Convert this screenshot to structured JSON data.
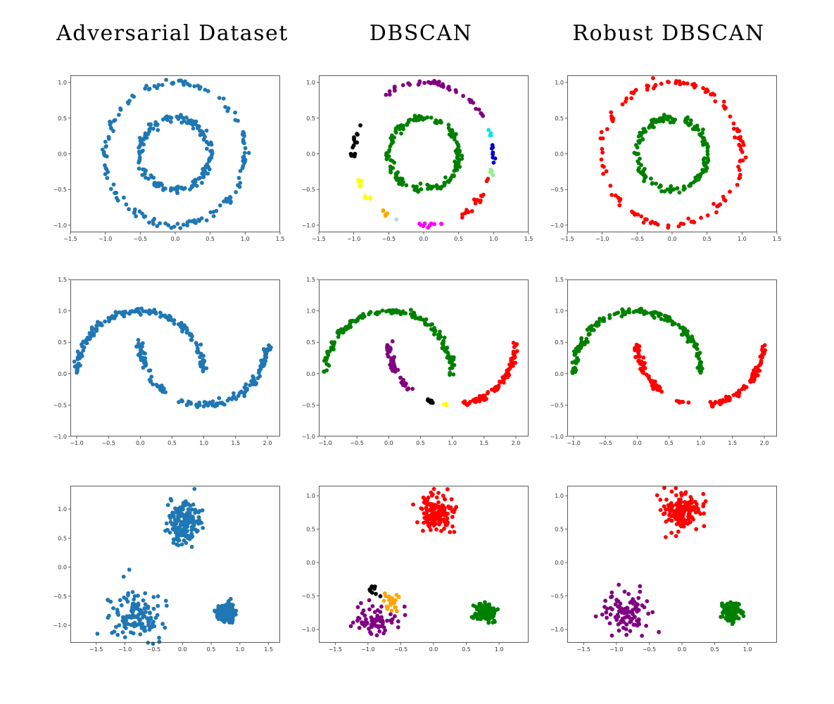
{
  "titles": [
    "Adversarial Dataset",
    "DBSCAN",
    "Robust DBSCAN"
  ],
  "colors": {
    "blue": "#1f77b4",
    "green": "#008000",
    "purple": "#800080",
    "black": "#000000",
    "red": "#ff0000",
    "cyan": "#00e5ee",
    "navy": "#0000cd",
    "lightgreen": "#90ee90",
    "magenta": "#ff00ff",
    "lightblue": "#add8e6",
    "orange": "#ffa500",
    "yellow": "#ffff00"
  },
  "chart_data": [
    {
      "type": "scatter",
      "title": "Adversarial Dataset",
      "xlim": [
        -1.5,
        1.5
      ],
      "ylim": [
        -1.1,
        1.1
      ],
      "xticks": [
        "-1.5",
        "-1.0",
        "-0.5",
        "0.0",
        "0.5",
        "1.0",
        "1.5"
      ],
      "yticks": [
        "-1.0",
        "-0.5",
        "0.0",
        "0.5",
        "1.0"
      ],
      "series": [
        {
          "color": "blue",
          "shape": "arc",
          "cx": 0,
          "cy": 0,
          "r": 1.0,
          "a0": 0,
          "a1": 360,
          "n": 150,
          "noise": 0.025
        },
        {
          "color": "blue",
          "shape": "arc",
          "cx": 0,
          "cy": 0,
          "r": 0.5,
          "a0": 0,
          "a1": 360,
          "n": 160,
          "noise": 0.025
        }
      ]
    },
    {
      "type": "scatter",
      "title": "DBSCAN",
      "xlim": [
        -1.5,
        1.5
      ],
      "ylim": [
        -1.1,
        1.1
      ],
      "xticks": [
        "-1.5",
        "-1.0",
        "-0.5",
        "0.0",
        "0.5",
        "1.0",
        "1.5"
      ],
      "yticks": [
        "-1.0",
        "-0.5",
        "0.0",
        "0.5",
        "1.0"
      ],
      "series": [
        {
          "color": "green",
          "shape": "arc",
          "cx": 0,
          "cy": 0,
          "r": 0.5,
          "a0": 0,
          "a1": 360,
          "n": 160,
          "noise": 0.025
        },
        {
          "color": "purple",
          "shape": "arc",
          "cx": 0,
          "cy": 0,
          "r": 1.0,
          "a0": 25,
          "a1": 123,
          "n": 45,
          "noise": 0.02
        },
        {
          "color": "black",
          "shape": "arc",
          "cx": 0,
          "cy": 0,
          "r": 1.0,
          "a0": 155,
          "a1": 183,
          "n": 16,
          "noise": 0.02
        },
        {
          "color": "yellow",
          "shape": "arc",
          "cx": 0,
          "cy": 0,
          "r": 1.0,
          "a0": 202,
          "a1": 222,
          "n": 10,
          "noise": 0.02
        },
        {
          "color": "orange",
          "shape": "arc",
          "cx": 0,
          "cy": 0,
          "r": 1.0,
          "a0": 232,
          "a1": 238,
          "n": 5,
          "noise": 0.02
        },
        {
          "color": "lightblue",
          "shape": "arc",
          "cx": 0,
          "cy": 0,
          "r": 1.0,
          "a0": 246,
          "a1": 248,
          "n": 1,
          "noise": 0.0
        },
        {
          "color": "magenta",
          "shape": "arc",
          "cx": 0,
          "cy": 0,
          "r": 1.0,
          "a0": 262,
          "a1": 283,
          "n": 10,
          "noise": 0.02
        },
        {
          "color": "red",
          "shape": "arc",
          "cx": 0,
          "cy": 0,
          "r": 1.0,
          "a0": 300,
          "a1": 343,
          "n": 18,
          "noise": 0.02
        },
        {
          "color": "lightgreen",
          "shape": "arc",
          "cx": 0,
          "cy": 0,
          "r": 1.0,
          "a0": 342,
          "a1": 347,
          "n": 4,
          "noise": 0.015
        },
        {
          "color": "navy",
          "shape": "arc",
          "cx": 0,
          "cy": 0,
          "r": 1.0,
          "a0": 352,
          "a1": 367,
          "n": 8,
          "noise": 0.02
        },
        {
          "color": "cyan",
          "shape": "arc",
          "cx": 0,
          "cy": 0,
          "r": 1.0,
          "a0": 15,
          "a1": 20,
          "n": 4,
          "noise": 0.015
        }
      ]
    },
    {
      "type": "scatter",
      "title": "Robust DBSCAN",
      "xlim": [
        -1.5,
        1.5
      ],
      "ylim": [
        -1.1,
        1.1
      ],
      "xticks": [
        "-1.5",
        "-1.0",
        "-0.5",
        "0.0",
        "0.5",
        "1.0",
        "1.5"
      ],
      "yticks": [
        "-1.0",
        "-0.5",
        "0.0",
        "0.5",
        "1.0"
      ],
      "series": [
        {
          "color": "green",
          "shape": "arc",
          "cx": 0,
          "cy": 0,
          "r": 0.5,
          "a0": 0,
          "a1": 360,
          "n": 160,
          "noise": 0.025
        },
        {
          "color": "red",
          "shape": "arc",
          "cx": 0,
          "cy": 0,
          "r": 1.0,
          "a0": 0,
          "a1": 360,
          "n": 130,
          "noise": 0.025
        }
      ]
    },
    {
      "type": "scatter",
      "title": "Adversarial Dataset",
      "xlim": [
        -1.1,
        2.2
      ],
      "ylim": [
        -1.0,
        1.5
      ],
      "xticks": [
        "-1.0",
        "-0.5",
        "0.0",
        "0.5",
        "1.0",
        "1.5",
        "2.0"
      ],
      "yticks": [
        "-1.0",
        "-0.5",
        "0.0",
        "0.5",
        "1.0",
        "1.5"
      ],
      "series": [
        {
          "color": "blue",
          "shape": "arc",
          "cx": 0,
          "cy": 0,
          "r": 1.0,
          "a0": 0,
          "a1": 180,
          "n": 170,
          "noise": 0.025
        },
        {
          "color": "blue",
          "shape": "arc",
          "cx": 1,
          "cy": 0.5,
          "r": 1.0,
          "a0": 180,
          "a1": 232,
          "n": 60,
          "noise": 0.025
        },
        {
          "color": "blue",
          "shape": "arc",
          "cx": 1,
          "cy": 0.5,
          "r": 1.0,
          "a0": 248,
          "a1": 258,
          "n": 8,
          "noise": 0.02
        },
        {
          "color": "blue",
          "shape": "arc",
          "cx": 1,
          "cy": 0.5,
          "r": 1.0,
          "a0": 262,
          "a1": 360,
          "n": 95,
          "noise": 0.025
        }
      ]
    },
    {
      "type": "scatter",
      "title": "DBSCAN",
      "xlim": [
        -1.1,
        2.2
      ],
      "ylim": [
        -1.0,
        1.5
      ],
      "xticks": [
        "-1.0",
        "-0.5",
        "0.0",
        "0.5",
        "1.0",
        "1.5",
        "2.0"
      ],
      "yticks": [
        "-1.0",
        "-0.5",
        "0.0",
        "0.5",
        "1.0",
        "1.5"
      ],
      "series": [
        {
          "color": "green",
          "shape": "arc",
          "cx": 0,
          "cy": 0,
          "r": 1.0,
          "a0": 0,
          "a1": 180,
          "n": 170,
          "noise": 0.025
        },
        {
          "color": "purple",
          "shape": "arc",
          "cx": 1,
          "cy": 0.5,
          "r": 1.0,
          "a0": 180,
          "a1": 228,
          "n": 50,
          "noise": 0.025
        },
        {
          "color": "black",
          "shape": "arc",
          "cx": 1,
          "cy": 0.5,
          "r": 1.0,
          "a0": 245,
          "a1": 255,
          "n": 8,
          "noise": 0.015
        },
        {
          "color": "yellow",
          "shape": "arc",
          "cx": 1,
          "cy": 0.5,
          "r": 1.0,
          "a0": 260,
          "a1": 265,
          "n": 3,
          "noise": 0.01
        },
        {
          "color": "red",
          "shape": "arc",
          "cx": 1,
          "cy": 0.5,
          "r": 1.0,
          "a0": 280,
          "a1": 360,
          "n": 90,
          "noise": 0.025
        }
      ]
    },
    {
      "type": "scatter",
      "title": "Robust DBSCAN",
      "xlim": [
        -1.1,
        2.2
      ],
      "ylim": [
        -1.0,
        1.5
      ],
      "xticks": [
        "-1.0",
        "-0.5",
        "0.0",
        "0.5",
        "1.0",
        "1.5",
        "2.0"
      ],
      "yticks": [
        "-1.0",
        "-0.5",
        "0.0",
        "0.5",
        "1.0",
        "1.5"
      ],
      "series": [
        {
          "color": "green",
          "shape": "arc",
          "cx": 0,
          "cy": 0,
          "r": 1.0,
          "a0": 0,
          "a1": 180,
          "n": 170,
          "noise": 0.025
        },
        {
          "color": "red",
          "shape": "arc",
          "cx": 1,
          "cy": 0.5,
          "r": 1.0,
          "a0": 180,
          "a1": 232,
          "n": 60,
          "noise": 0.025
        },
        {
          "color": "red",
          "shape": "arc",
          "cx": 1,
          "cy": 0.5,
          "r": 1.0,
          "a0": 248,
          "a1": 260,
          "n": 7,
          "noise": 0.02
        },
        {
          "color": "red",
          "shape": "arc",
          "cx": 1,
          "cy": 0.5,
          "r": 1.0,
          "a0": 278,
          "a1": 360,
          "n": 90,
          "noise": 0.025
        }
      ]
    },
    {
      "type": "scatter",
      "title": "Adversarial Dataset",
      "xlim": [
        -1.95,
        1.7
      ],
      "ylim": [
        -1.3,
        1.4
      ],
      "xticks": [
        "-1.5",
        "-1.0",
        "-0.5",
        "0.0",
        "0.5",
        "1.0",
        "1.5"
      ],
      "yticks": [
        "-1.0",
        "-0.5",
        "0.0",
        "0.5",
        "1.0"
      ],
      "series": [
        {
          "color": "blue",
          "shape": "blob",
          "cx": 0.0,
          "cy": 0.75,
          "sx": 0.15,
          "sy": 0.18,
          "n": 170
        },
        {
          "color": "blue",
          "shape": "blob",
          "cx": -0.8,
          "cy": -0.8,
          "sx": 0.22,
          "sy": 0.2,
          "n": 140
        },
        {
          "color": "blue",
          "shape": "blob",
          "cx": 0.75,
          "cy": -0.77,
          "sx": 0.08,
          "sy": 0.08,
          "n": 130
        }
      ]
    },
    {
      "type": "scatter",
      "title": "DBSCAN",
      "xlim": [
        -1.75,
        1.45
      ],
      "ylim": [
        -1.2,
        1.15
      ],
      "xticks": [
        "-1.5",
        "-1.0",
        "-0.5",
        "0.0",
        "0.5",
        "1.0"
      ],
      "yticks": [
        "-1.0",
        "-0.5",
        "0.0",
        "0.5",
        "1.0"
      ],
      "series": [
        {
          "color": "red",
          "shape": "blob",
          "cx": 0.05,
          "cy": 0.75,
          "sx": 0.13,
          "sy": 0.13,
          "n": 150
        },
        {
          "color": "purple",
          "shape": "blob",
          "cx": -0.85,
          "cy": -0.85,
          "sx": 0.18,
          "sy": 0.1,
          "n": 70
        },
        {
          "color": "black",
          "shape": "blob",
          "cx": -0.92,
          "cy": -0.42,
          "sx": 0.04,
          "sy": 0.04,
          "n": 12
        },
        {
          "color": "orange",
          "shape": "blob",
          "cx": -0.63,
          "cy": -0.58,
          "sx": 0.07,
          "sy": 0.07,
          "n": 24
        },
        {
          "color": "green",
          "shape": "blob",
          "cx": 0.77,
          "cy": -0.75,
          "sx": 0.07,
          "sy": 0.07,
          "n": 130
        }
      ]
    },
    {
      "type": "scatter",
      "title": "Robust DBSCAN",
      "xlim": [
        -1.75,
        1.45
      ],
      "ylim": [
        -1.2,
        1.15
      ],
      "xticks": [
        "-1.5",
        "-1.0",
        "-0.5",
        "0.0",
        "0.5",
        "1.0"
      ],
      "yticks": [
        "-1.0",
        "-0.5",
        "0.0",
        "0.5",
        "1.0"
      ],
      "series": [
        {
          "color": "red",
          "shape": "blob",
          "cx": 0.0,
          "cy": 0.75,
          "sx": 0.13,
          "sy": 0.13,
          "n": 150
        },
        {
          "color": "purple",
          "shape": "blob",
          "cx": -0.85,
          "cy": -0.75,
          "sx": 0.18,
          "sy": 0.16,
          "n": 100
        },
        {
          "color": "green",
          "shape": "blob",
          "cx": 0.77,
          "cy": -0.75,
          "sx": 0.07,
          "sy": 0.07,
          "n": 130
        }
      ]
    }
  ]
}
